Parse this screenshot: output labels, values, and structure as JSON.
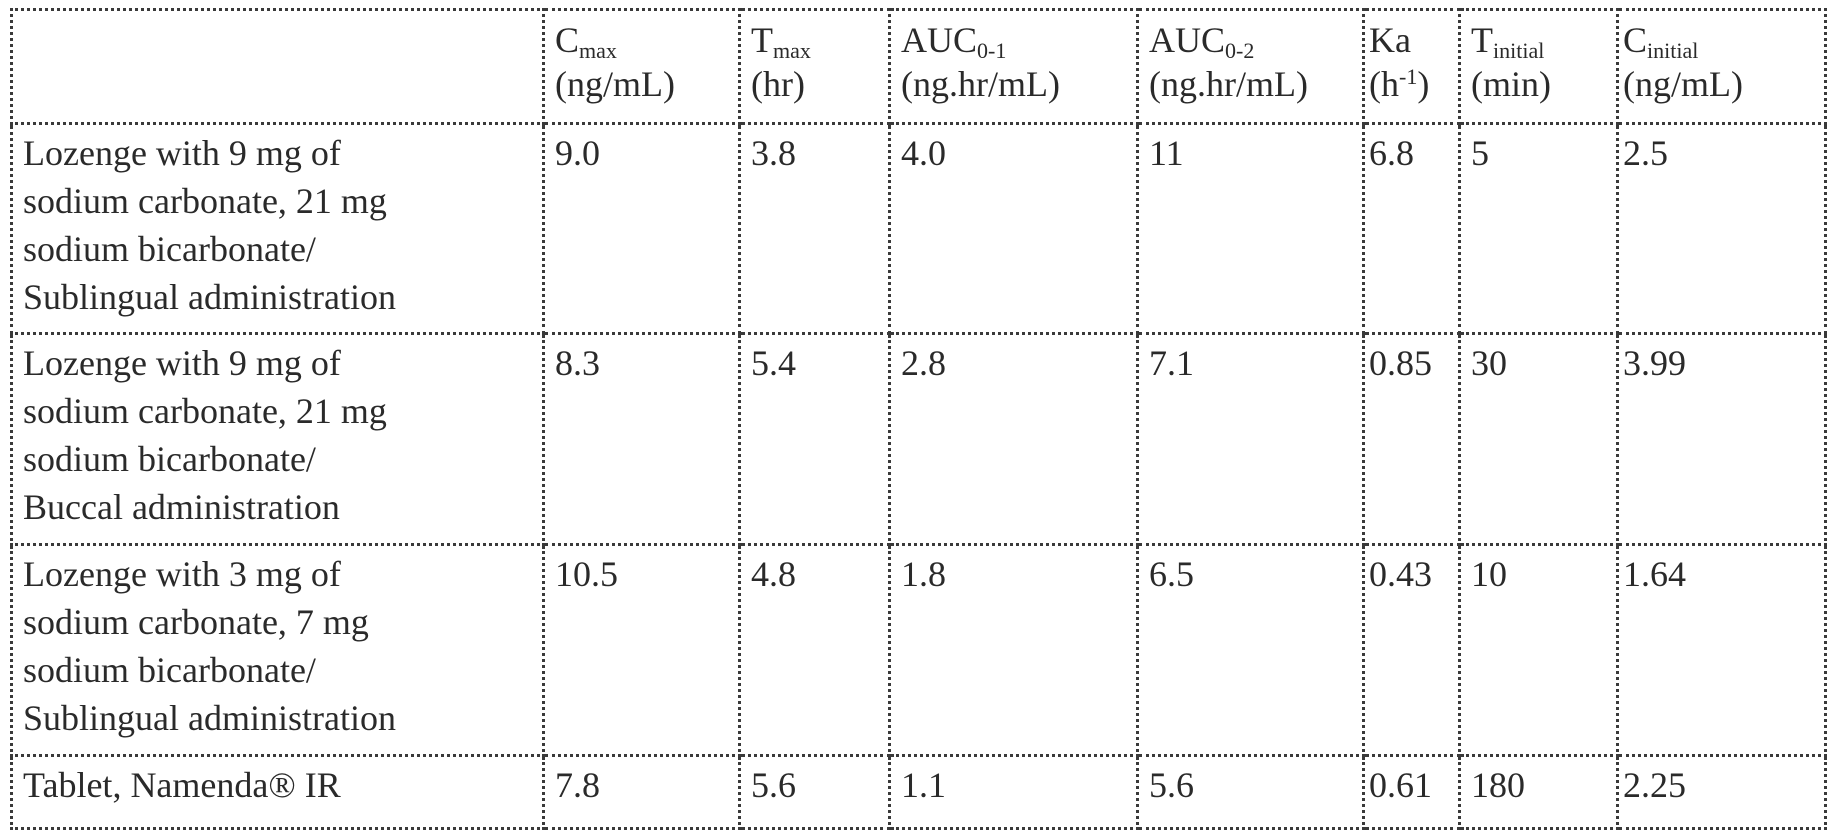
{
  "table": {
    "columns": [
      {
        "base": "",
        "sub": "",
        "sup": "",
        "after": "",
        "unit": ""
      },
      {
        "base": "C",
        "sub": "max",
        "sup": "",
        "after": "",
        "unit": "(ng/mL)"
      },
      {
        "base": "T",
        "sub": "max",
        "sup": "",
        "after": "",
        "unit": "(hr)"
      },
      {
        "base": "AUC",
        "sub": "0-1",
        "sup": "",
        "after": "",
        "unit": "(ng.hr/mL)"
      },
      {
        "base": "AUC",
        "sub": "0-2",
        "sup": "",
        "after": "",
        "unit": "(ng.hr/mL)"
      },
      {
        "base": "Ka",
        "sub": "",
        "sup": "",
        "after": "",
        "unit_pre": "(h",
        "unit_sup": "-1",
        "unit_post": ")"
      },
      {
        "base": "T",
        "sub": "initial",
        "sup": "",
        "after": "",
        "unit": "(min)"
      },
      {
        "base": "C",
        "sub": "initial",
        "sup": "",
        "after": "",
        "unit": "(ng/mL)"
      }
    ],
    "rows": [
      {
        "label_lines": [
          "Lozenge with 9 mg of",
          "sodium carbonate, 21 mg",
          "sodium bicarbonate/",
          "Sublingual administration"
        ],
        "values": [
          "9.0",
          "3.8",
          "4.0",
          "11",
          "6.8",
          "5",
          "2.5"
        ]
      },
      {
        "label_lines": [
          "Lozenge with 9 mg of",
          "sodium carbonate, 21 mg",
          "sodium bicarbonate/",
          "Buccal administration"
        ],
        "values": [
          "8.3",
          "5.4",
          "2.8",
          "7.1",
          "0.85",
          "30",
          "3.99"
        ]
      },
      {
        "label_lines": [
          "Lozenge with 3 mg of",
          "sodium carbonate, 7 mg",
          "sodium bicarbonate/",
          "Sublingual administration"
        ],
        "values": [
          "10.5",
          "4.8",
          "1.8",
          "6.5",
          "0.43",
          "10",
          "1.64"
        ]
      },
      {
        "label_lines": [
          "Tablet, Namenda® IR"
        ],
        "values": [
          "7.8",
          "5.6",
          "1.1",
          "5.6",
          "0.61",
          "180",
          "2.25"
        ]
      }
    ]
  }
}
